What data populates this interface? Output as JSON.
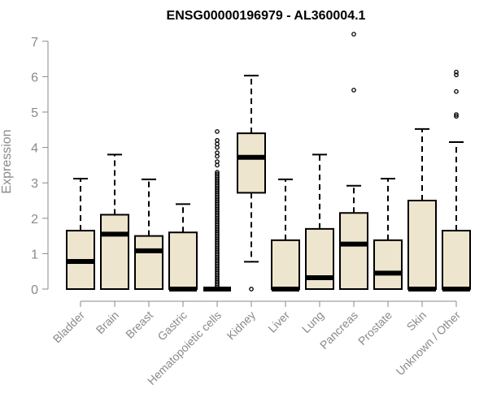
{
  "chart_data": {
    "type": "boxplot",
    "title": "ENSG00000196979 - AL360004.1",
    "xlabel": "",
    "ylabel": "Expression",
    "ylim": [
      0,
      7
    ],
    "yticks": [
      0,
      1,
      2,
      3,
      4,
      5,
      6,
      7
    ],
    "grid": false,
    "box_fill": "#ede5cd",
    "categories": [
      "Bladder",
      "Brain",
      "Breast",
      "Gastric",
      "Hematopoietic cells",
      "Kidney",
      "Liver",
      "Lung",
      "Pancreas",
      "Prostate",
      "Skin",
      "Unknown / Other"
    ],
    "boxes": [
      {
        "category": "Bladder",
        "whisker_low": 0,
        "q1": 0,
        "median": 0.78,
        "q3": 1.65,
        "whisker_high": 3.12,
        "outliers": []
      },
      {
        "category": "Brain",
        "whisker_low": 0,
        "q1": 0,
        "median": 1.55,
        "q3": 2.1,
        "whisker_high": 3.8,
        "outliers": []
      },
      {
        "category": "Breast",
        "whisker_low": 0,
        "q1": 0,
        "median": 1.08,
        "q3": 1.5,
        "whisker_high": 3.1,
        "outliers": []
      },
      {
        "category": "Gastric",
        "whisker_low": 0,
        "q1": 0,
        "median": 0,
        "q3": 1.6,
        "whisker_high": 2.4,
        "outliers": []
      },
      {
        "category": "Hematopoietic cells",
        "whisker_low": 0,
        "q1": 0,
        "median": 0,
        "q3": 0,
        "whisker_high": 0,
        "outliers": [
          0.05,
          0.1,
          0.15,
          0.2,
          0.25,
          0.3,
          0.35,
          0.4,
          0.45,
          0.5,
          0.55,
          0.6,
          0.65,
          0.7,
          0.75,
          0.8,
          0.85,
          0.9,
          0.95,
          1.0,
          1.05,
          1.1,
          1.15,
          1.2,
          1.25,
          1.3,
          1.35,
          1.4,
          1.45,
          1.5,
          1.55,
          1.6,
          1.65,
          1.7,
          1.75,
          1.8,
          1.85,
          1.9,
          1.95,
          2.0,
          2.05,
          2.1,
          2.15,
          2.2,
          2.25,
          2.3,
          2.35,
          2.4,
          2.45,
          2.5,
          2.55,
          2.6,
          2.65,
          2.7,
          2.75,
          2.8,
          2.85,
          2.9,
          2.95,
          3.0,
          3.05,
          3.1,
          3.15,
          3.2,
          3.25,
          3.3,
          3.5,
          3.6,
          3.75,
          3.85,
          4.0,
          4.1,
          4.2,
          4.45
        ]
      },
      {
        "category": "Kidney",
        "whisker_low": 0.77,
        "q1": 2.72,
        "median": 3.72,
        "q3": 4.4,
        "whisker_high": 6.03,
        "outliers": [
          0
        ]
      },
      {
        "category": "Liver",
        "whisker_low": 0,
        "q1": 0,
        "median": 0,
        "q3": 1.38,
        "whisker_high": 3.1,
        "outliers": []
      },
      {
        "category": "Lung",
        "whisker_low": 0,
        "q1": 0,
        "median": 0.32,
        "q3": 1.7,
        "whisker_high": 3.8,
        "outliers": []
      },
      {
        "category": "Pancreas",
        "whisker_low": 0,
        "q1": 0,
        "median": 1.27,
        "q3": 2.15,
        "whisker_high": 2.92,
        "outliers": [
          5.62,
          7.2
        ]
      },
      {
        "category": "Prostate",
        "whisker_low": 0,
        "q1": 0,
        "median": 0.45,
        "q3": 1.38,
        "whisker_high": 3.12,
        "outliers": []
      },
      {
        "category": "Skin",
        "whisker_low": 0,
        "q1": 0,
        "median": 0,
        "q3": 2.5,
        "whisker_high": 4.52,
        "outliers": []
      },
      {
        "category": "Unknown / Other",
        "whisker_low": 0,
        "q1": 0,
        "median": 0,
        "q3": 1.65,
        "whisker_high": 4.15,
        "outliers": [
          4.88,
          4.93,
          5.58,
          6.05,
          6.13
        ]
      }
    ]
  }
}
